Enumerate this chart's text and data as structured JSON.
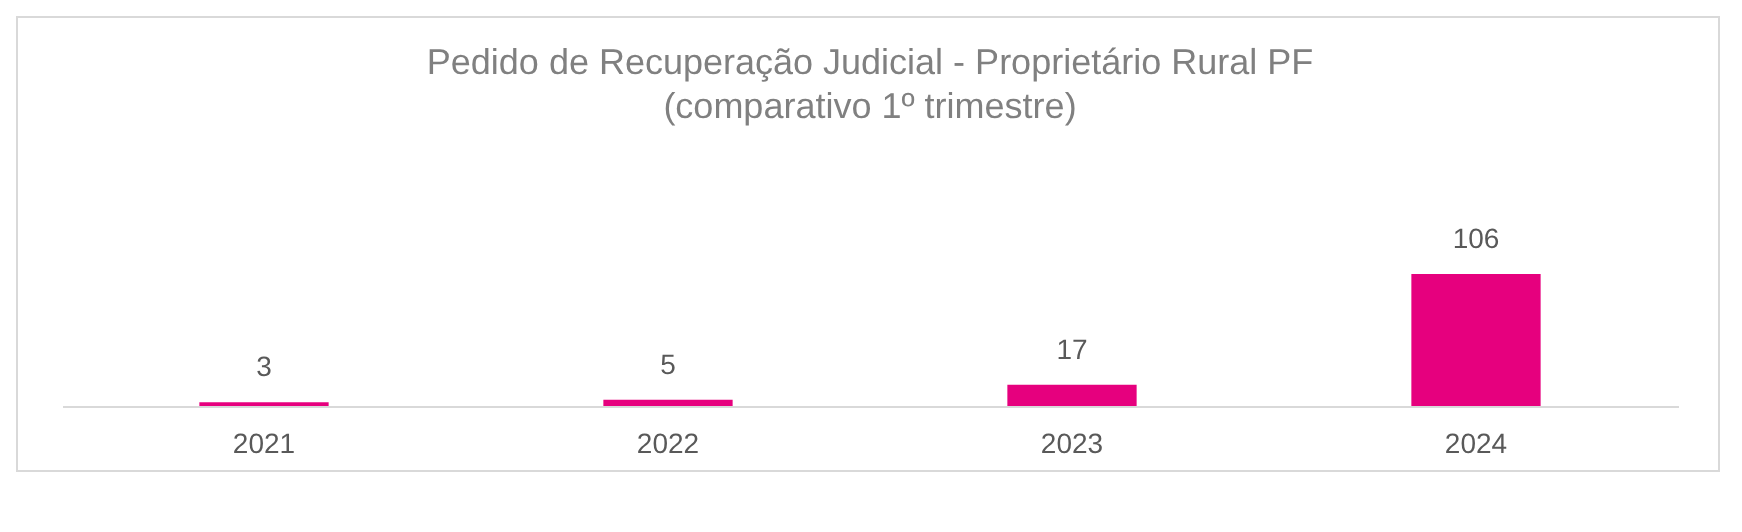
{
  "chart_data": {
    "type": "bar",
    "title": "Pedido de Recuperação Judicial - Proprietário Rural PF",
    "subtitle": "(comparativo 1º trimestre)",
    "categories": [
      "2021",
      "2022",
      "2023",
      "2024"
    ],
    "values": [
      3,
      5,
      17,
      106
    ],
    "color": "#e6007e",
    "data_labels": true
  }
}
